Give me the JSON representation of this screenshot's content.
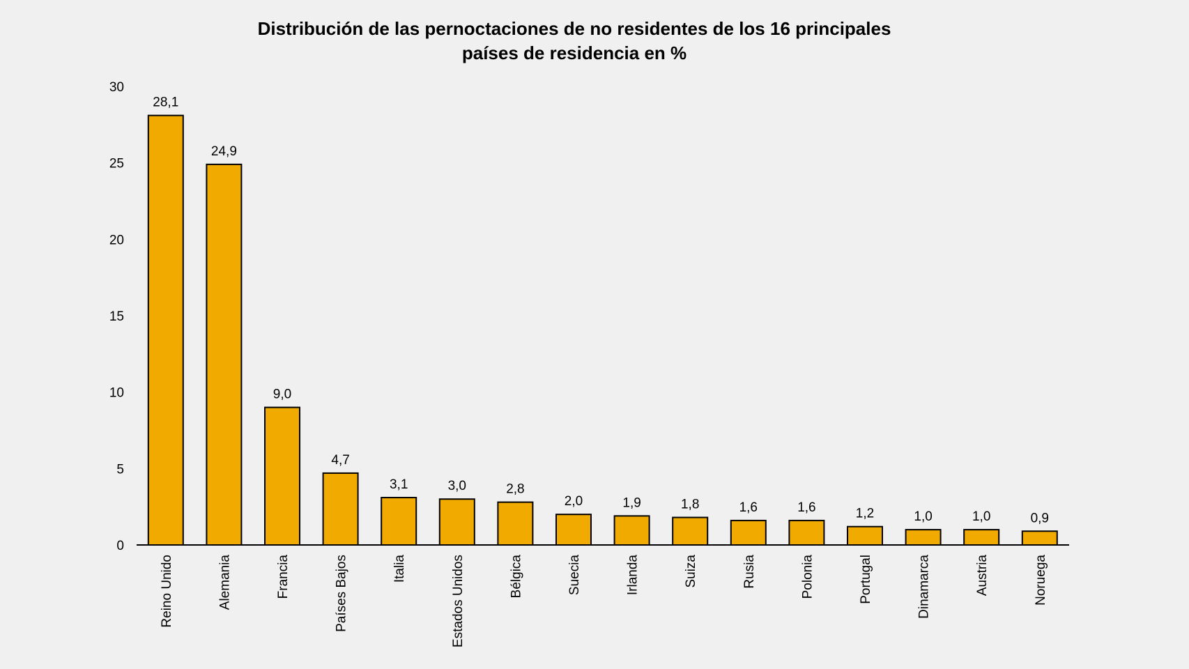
{
  "chart_data": {
    "type": "bar",
    "title": "Distribución de las pernoctaciones de no residentes de los 16 principales",
    "subtitle": "países de residencia en %",
    "categories": [
      "Reino Unido",
      "Alemania",
      "Francia",
      "Países Bajos",
      "Italia",
      "Estados Unidos",
      "Bélgica",
      "Suecia",
      "Irlanda",
      "Suiza",
      "Rusia",
      "Polonia",
      "Portugal",
      "Dinamarca",
      "Austria",
      "Noruega"
    ],
    "values": [
      28.1,
      24.9,
      9.0,
      4.7,
      3.1,
      3.0,
      2.8,
      2.0,
      1.9,
      1.8,
      1.6,
      1.6,
      1.2,
      1.0,
      1.0,
      0.9
    ],
    "data_labels": [
      "28,1",
      "24,9",
      "9,0",
      "4,7",
      "3,1",
      "3,0",
      "2,8",
      "2,0",
      "1,9",
      "1,8",
      "1,6",
      "1,6",
      "1,2",
      "1,0",
      "1,0",
      "0,9"
    ],
    "yticks": [
      "0",
      "5",
      "10",
      "15",
      "20",
      "25",
      "30"
    ],
    "ylim": [
      0,
      30
    ],
    "xlabel": "",
    "ylabel": "",
    "grid": false,
    "legend": "none",
    "colors": {
      "bar": "#f0aa00",
      "bar_edge": "#000000",
      "background": "#f0f0f0"
    }
  }
}
